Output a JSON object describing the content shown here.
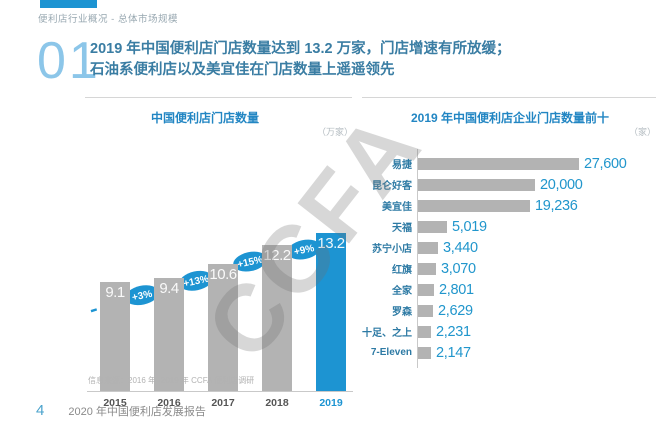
{
  "page": {
    "eyebrow": "便利店行业概况 - 总体市场规模",
    "section_number": "01",
    "title_line1": "2019 年中国便利店门店数量达到 13.2 万家，门店增速有所放缓；",
    "title_line2": "石油系便利店以及美宜佳在门店数量上遥遥领先",
    "watermark": "CCFA",
    "footer": {
      "page_number": "4",
      "report_title": "2020 年中国便利店发展报告"
    }
  },
  "colors": {
    "accent_blue": "#1d94d2",
    "title_blue": "#3a7da3",
    "chart_title_blue": "#2286c3",
    "value_blue": "#2196cc",
    "bar_gray": "#b3b3b3",
    "watermark_gray": "#d0d0d0"
  },
  "chart_data": [
    {
      "type": "bar",
      "title": "中国便利店门店数量",
      "unit": "（万家）",
      "categories": [
        "2015",
        "2016",
        "2017",
        "2018",
        "2019"
      ],
      "values": [
        9.1,
        9.4,
        10.6,
        12.2,
        13.2
      ],
      "value_labels": [
        "9.1",
        "9.4",
        "10.6",
        "12.2",
        "13.2"
      ],
      "growth_labels": [
        "+3%",
        "+13%",
        "+15%",
        "+9%"
      ],
      "highlight_category": "2019",
      "xlabel": "",
      "ylabel": "",
      "legend": false,
      "grid": false,
      "source_note": "信息来源：2016 年 -2019 年 CCFA 便利店调研"
    },
    {
      "type": "bar",
      "orientation": "horizontal",
      "title": "2019 年中国便利店企业门店数量前十",
      "unit": "（家）",
      "categories": [
        "易捷",
        "昆仑好客",
        "美宜佳",
        "天福",
        "苏宁小店",
        "红旗",
        "全家",
        "罗森",
        "十足、之上",
        "7-Eleven"
      ],
      "values": [
        27600,
        20000,
        19236,
        5019,
        3440,
        3070,
        2801,
        2629,
        2231,
        2147
      ],
      "value_labels": [
        "27,600",
        "20,000",
        "19,236",
        "5,019",
        "3,440",
        "3,070",
        "2,801",
        "2,629",
        "2,231",
        "2,147"
      ],
      "xlim": [
        0,
        27600
      ],
      "legend": false,
      "grid": false
    }
  ]
}
